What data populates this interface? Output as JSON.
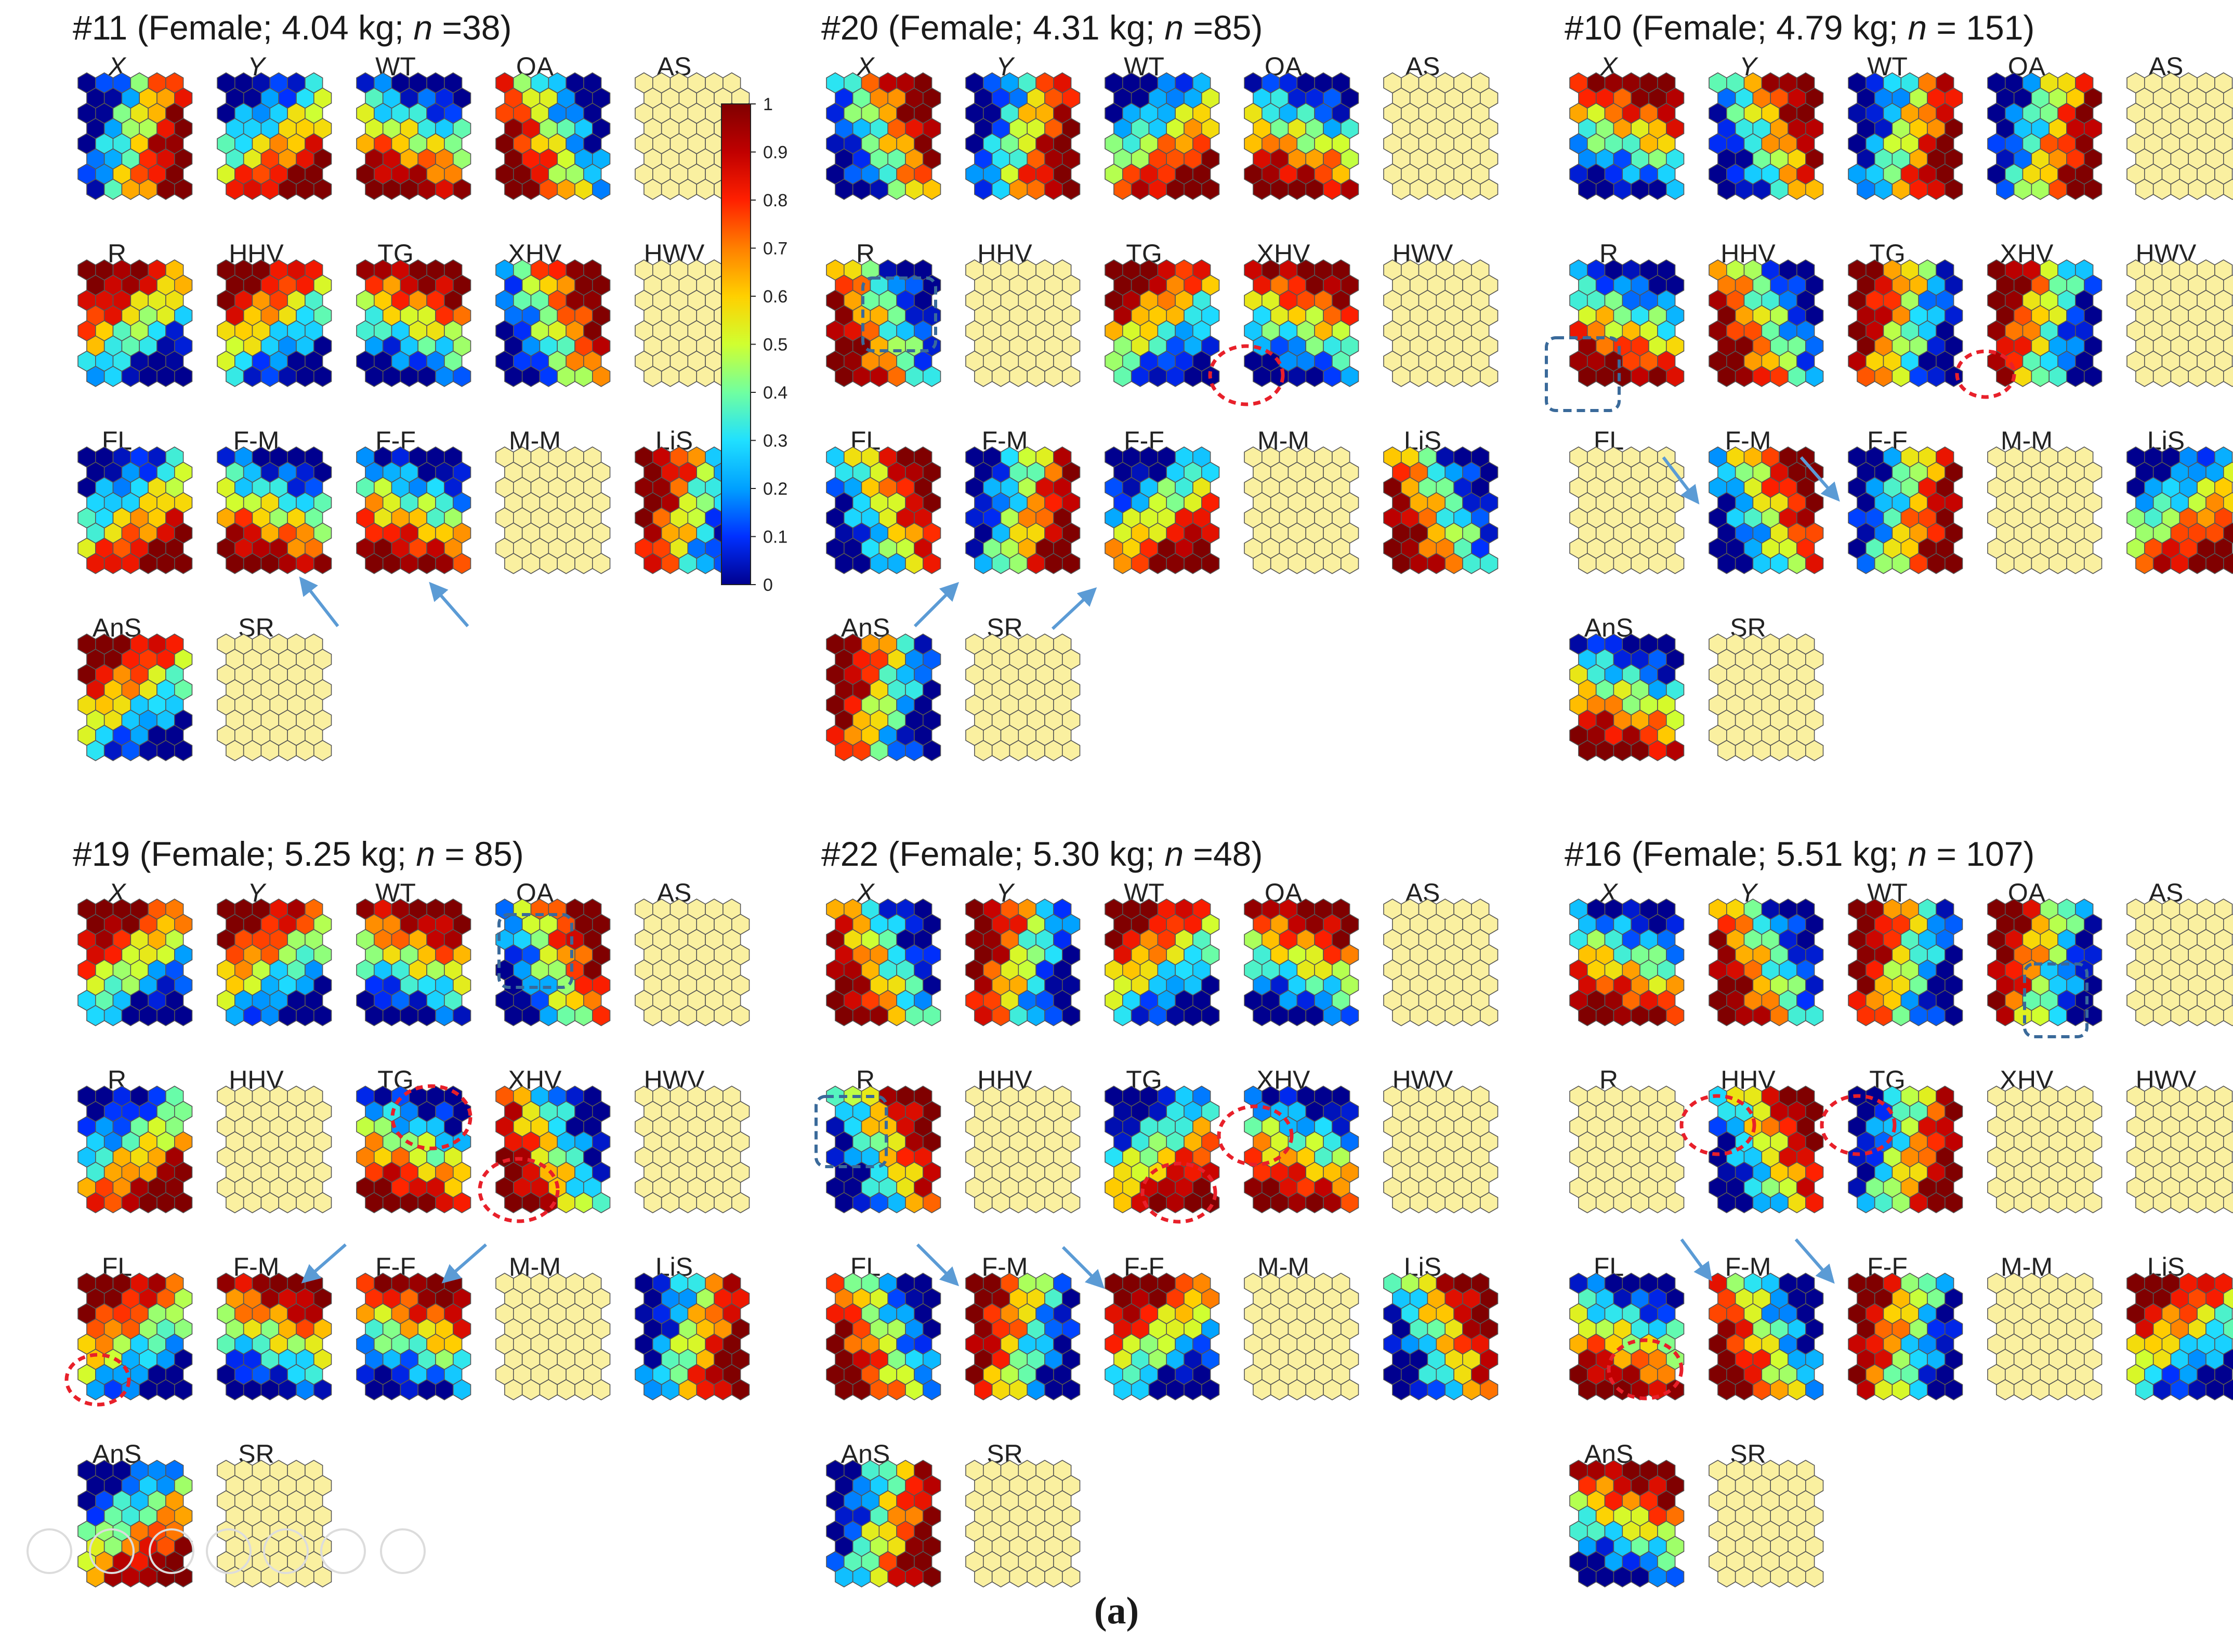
{
  "variables": [
    "X",
    "Y",
    "WT",
    "OA",
    "AS",
    "R",
    "HHV",
    "TG",
    "XHV",
    "HWV",
    "FL",
    "F-M",
    "F-F",
    "M-M",
    "LiS",
    "AnS",
    "SR"
  ],
  "italic_variables": [
    "X",
    "Y"
  ],
  "panels": [
    {
      "id": "#11",
      "sex": "Female",
      "weight": "4.04 kg",
      "n_label": "n",
      "n_sep": " =",
      "n_value": "38",
      "empty": [
        "AS",
        "HWV",
        "M-M",
        "SR"
      ]
    },
    {
      "id": "#20",
      "sex": "Female",
      "weight": "4.31 kg",
      "n_label": "n",
      "n_sep": " =",
      "n_value": "85",
      "empty": [
        "AS",
        "HHV",
        "HWV",
        "M-M",
        "SR"
      ]
    },
    {
      "id": "#10",
      "sex": "Female",
      "weight": "4.79 kg",
      "n_label": "n",
      "n_sep": " = ",
      "n_value": "151",
      "empty": [
        "AS",
        "HWV",
        "FL",
        "M-M",
        "SR"
      ]
    },
    {
      "id": "#19",
      "sex": "Female",
      "weight": "5.25 kg",
      "n_label": "n",
      "n_sep": " = ",
      "n_value": "85",
      "empty": [
        "AS",
        "HHV",
        "HWV",
        "M-M",
        "SR"
      ]
    },
    {
      "id": "#22",
      "sex": "Female",
      "weight": "5.30 kg",
      "n_label": "n",
      "n_sep": " =",
      "n_value": "48",
      "empty": [
        "AS",
        "HHV",
        "HWV",
        "M-M",
        "SR"
      ]
    },
    {
      "id": "#16",
      "sex": "Female",
      "weight": "5.51 kg",
      "n_label": "n",
      "n_sep": " = ",
      "n_value": "107",
      "empty": [
        "AS",
        "R",
        "XHV",
        "HWV",
        "M-M",
        "SR"
      ]
    }
  ],
  "colorbar": {
    "ticks": [
      "0",
      "0.1",
      "0.2",
      "0.3",
      "0.4",
      "0.5",
      "0.6",
      "0.7",
      "0.8",
      "0.9",
      "1"
    ],
    "colors": [
      "#00008f",
      "#0030ff",
      "#00a0ff",
      "#20e0ff",
      "#70ffa0",
      "#d0ff30",
      "#ffd000",
      "#ff8000",
      "#ff2000",
      "#c00000",
      "#800000"
    ]
  },
  "empty_map_color": "#faf0a0",
  "caption": "(a)",
  "overlays": {
    "circle_color": "#e8202a",
    "box_color": "#3a6a9a",
    "arrow_color": "#5b9bd5"
  }
}
